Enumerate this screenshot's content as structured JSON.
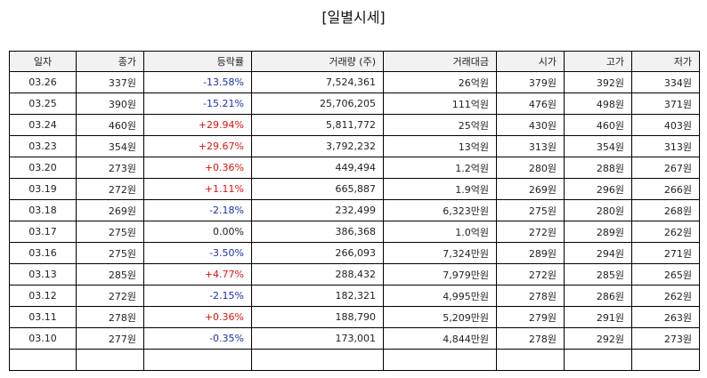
{
  "title": "[일별시세]",
  "headers": [
    "일자",
    "종가",
    "등락률",
    "거래량 (주)",
    "거래대금",
    "시가",
    "고가",
    "저가"
  ],
  "colors": {
    "up": "#e01010",
    "down": "#1a2fb0"
  },
  "rows": [
    {
      "date": "03.26",
      "close": "337원",
      "change": "-13.58%",
      "dir": "down",
      "volume": "7,524,361",
      "amount": "26억원",
      "open": "379원",
      "high": "392원",
      "low": "334원"
    },
    {
      "date": "03.25",
      "close": "390원",
      "change": "-15.21%",
      "dir": "down",
      "volume": "25,706,205",
      "amount": "111억원",
      "open": "476원",
      "high": "498원",
      "low": "371원"
    },
    {
      "date": "03.24",
      "close": "460원",
      "change": "+29.94%",
      "dir": "up",
      "volume": "5,811,772",
      "amount": "25억원",
      "open": "430원",
      "high": "460원",
      "low": "403원"
    },
    {
      "date": "03.23",
      "close": "354원",
      "change": "+29.67%",
      "dir": "up",
      "volume": "3,792,232",
      "amount": "13억원",
      "open": "313원",
      "high": "354원",
      "low": "313원"
    },
    {
      "date": "03.20",
      "close": "273원",
      "change": "+0.36%",
      "dir": "up",
      "volume": "449,494",
      "amount": "1.2억원",
      "open": "280원",
      "high": "288원",
      "low": "267원"
    },
    {
      "date": "03.19",
      "close": "272원",
      "change": "+1.11%",
      "dir": "up",
      "volume": "665,887",
      "amount": "1.9억원",
      "open": "269원",
      "high": "296원",
      "low": "266원"
    },
    {
      "date": "03.18",
      "close": "269원",
      "change": "-2.18%",
      "dir": "down",
      "volume": "232,499",
      "amount": "6,323만원",
      "open": "275원",
      "high": "280원",
      "low": "268원"
    },
    {
      "date": "03.17",
      "close": "275원",
      "change": "0.00%",
      "dir": "flat",
      "volume": "386,368",
      "amount": "1.0억원",
      "open": "272원",
      "high": "289원",
      "low": "262원"
    },
    {
      "date": "03.16",
      "close": "275원",
      "change": "-3.50%",
      "dir": "down",
      "volume": "266,093",
      "amount": "7,324만원",
      "open": "289원",
      "high": "294원",
      "low": "271원"
    },
    {
      "date": "03.13",
      "close": "285원",
      "change": "+4.77%",
      "dir": "up",
      "volume": "288,432",
      "amount": "7,979만원",
      "open": "272원",
      "high": "285원",
      "low": "265원"
    },
    {
      "date": "03.12",
      "close": "272원",
      "change": "-2.15%",
      "dir": "down",
      "volume": "182,321",
      "amount": "4,995만원",
      "open": "278원",
      "high": "286원",
      "low": "262원"
    },
    {
      "date": "03.11",
      "close": "278원",
      "change": "+0.36%",
      "dir": "up",
      "volume": "188,790",
      "amount": "5,209만원",
      "open": "279원",
      "high": "291원",
      "low": "263원"
    },
    {
      "date": "03.10",
      "close": "277원",
      "change": "-0.35%",
      "dir": "down",
      "volume": "173,001",
      "amount": "4,844만원",
      "open": "278원",
      "high": "292원",
      "low": "273원"
    },
    {
      "date": "",
      "close": "",
      "change": "",
      "dir": "flat",
      "volume": "",
      "amount": "",
      "open": "",
      "high": "",
      "low": ""
    }
  ]
}
